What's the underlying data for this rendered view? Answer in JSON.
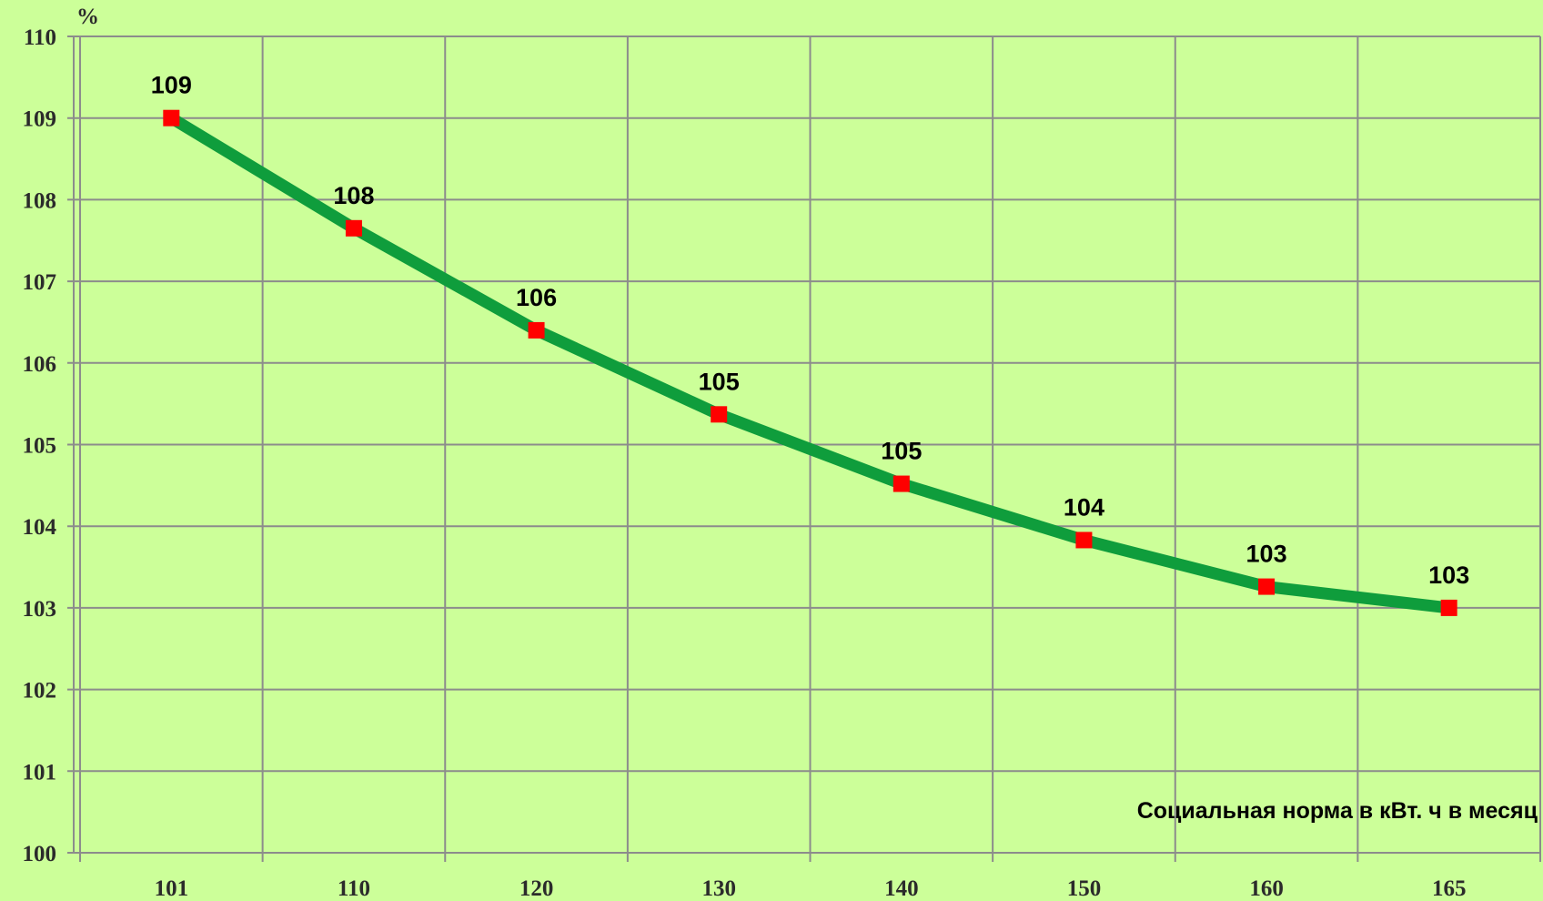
{
  "chart_data": {
    "type": "line",
    "y_label": "%",
    "x_label": "Социальная норма в кВт. ч в месяц",
    "categories": [
      "101",
      "110",
      "120",
      "130",
      "140",
      "150",
      "160",
      "165"
    ],
    "series": [
      {
        "color": "#0f9d3c",
        "marker_color": "#ff0000",
        "values": [
          109.0,
          107.65,
          106.4,
          105.37,
          104.52,
          103.83,
          103.26,
          103.0
        ],
        "value_labels": [
          "109",
          "108",
          "106",
          "105",
          "105",
          "104",
          "103",
          "103"
        ]
      }
    ],
    "ylim": [
      100,
      110
    ],
    "yticks": [
      100,
      101,
      102,
      103,
      104,
      105,
      106,
      107,
      108,
      109,
      110
    ],
    "grid": true
  }
}
